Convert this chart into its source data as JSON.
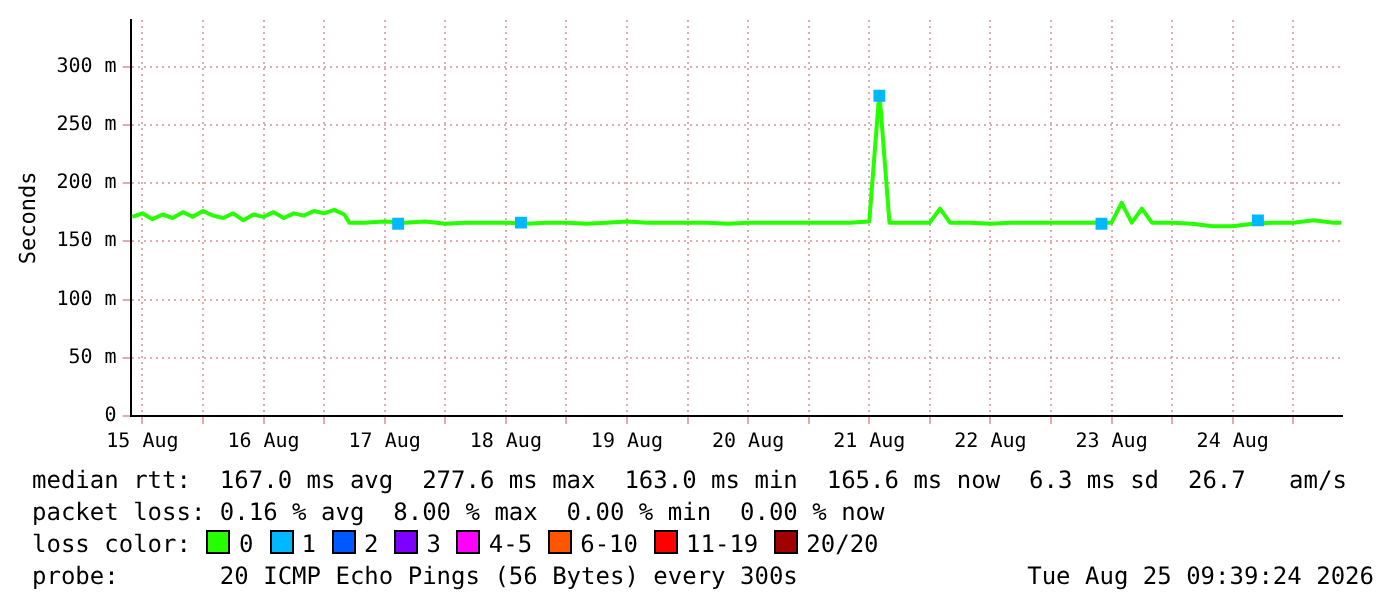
{
  "chart_data": {
    "type": "line",
    "ylabel": "Seconds",
    "legend_title": "loss color:",
    "legend": "bottom",
    "grid": true,
    "marker": "none",
    "xlim": [
      "2026-08-15T09:40",
      "2026-08-25T09:39"
    ],
    "xticks": [
      {
        "value": "2026-08-15T12:00",
        "label": "15 Aug"
      },
      {
        "value": "2026-08-16T00:00",
        "label": null
      },
      {
        "value": "2026-08-16T12:00",
        "label": "16 Aug"
      },
      {
        "value": "2026-08-17T00:00",
        "label": null
      },
      {
        "value": "2026-08-17T12:00",
        "label": "17 Aug"
      },
      {
        "value": "2026-08-18T00:00",
        "label": null
      },
      {
        "value": "2026-08-18T12:00",
        "label": "18 Aug"
      },
      {
        "value": "2026-08-19T00:00",
        "label": null
      },
      {
        "value": "2026-08-19T12:00",
        "label": "19 Aug"
      },
      {
        "value": "2026-08-20T00:00",
        "label": null
      },
      {
        "value": "2026-08-20T12:00",
        "label": "20 Aug"
      },
      {
        "value": "2026-08-21T00:00",
        "label": null
      },
      {
        "value": "2026-08-21T12:00",
        "label": "21 Aug"
      },
      {
        "value": "2026-08-22T00:00",
        "label": null
      },
      {
        "value": "2026-08-22T12:00",
        "label": "22 Aug"
      },
      {
        "value": "2026-08-23T00:00",
        "label": null
      },
      {
        "value": "2026-08-23T12:00",
        "label": "23 Aug"
      },
      {
        "value": "2026-08-24T00:00",
        "label": null
      },
      {
        "value": "2026-08-24T12:00",
        "label": "24 Aug"
      },
      {
        "value": "2026-08-25T00:00",
        "label": null
      }
    ],
    "ylim": [
      0,
      340
    ],
    "yticks": [
      0,
      {
        "value": 50,
        "label": "50 m"
      },
      {
        "value": 100,
        "label": "100 m"
      },
      {
        "value": 150,
        "label": "150 m"
      },
      {
        "value": 200,
        "label": "200 m"
      },
      {
        "value": 250,
        "label": "250 m"
      },
      {
        "value": 300,
        "label": "300 m"
      }
    ],
    "series": [
      {
        "name": "0",
        "color": "#26ff00",
        "x": [
          "2026-08-15T10:00",
          "2026-08-15T12:00",
          "2026-08-15T14:00",
          "2026-08-15T16:00",
          "2026-08-15T18:00",
          "2026-08-15T20:00",
          "2026-08-15T22:00",
          "2026-08-16T00:00",
          "2026-08-16T02:00",
          "2026-08-16T04:00",
          "2026-08-16T06:00",
          "2026-08-16T08:00",
          "2026-08-16T10:00",
          "2026-08-16T12:00",
          "2026-08-16T14:00",
          "2026-08-16T16:00",
          "2026-08-16T18:00",
          "2026-08-16T20:00",
          "2026-08-16T22:00",
          "2026-08-17T00:00",
          "2026-08-17T02:00",
          "2026-08-17T04:00",
          "2026-08-17T05:00",
          "2026-08-17T08:00",
          "2026-08-17T12:00",
          "2026-08-17T16:00",
          "2026-08-17T20:00",
          "2026-08-18T00:00",
          "2026-08-18T04:00",
          "2026-08-18T08:00",
          "2026-08-18T12:00",
          "2026-08-18T16:00",
          "2026-08-18T20:00",
          "2026-08-19T00:00",
          "2026-08-19T04:00",
          "2026-08-19T08:00",
          "2026-08-19T12:00",
          "2026-08-19T16:00",
          "2026-08-19T20:00",
          "2026-08-20T00:00",
          "2026-08-20T04:00",
          "2026-08-20T08:00",
          "2026-08-20T12:00",
          "2026-08-20T16:00",
          "2026-08-20T20:00",
          "2026-08-21T00:00",
          "2026-08-21T04:00",
          "2026-08-21T08:00",
          "2026-08-21T12:00",
          "2026-08-21T14:00",
          "2026-08-21T16:00",
          "2026-08-21T20:00",
          "2026-08-22T00:00",
          "2026-08-22T02:00",
          "2026-08-22T04:00",
          "2026-08-22T08:00",
          "2026-08-22T12:00",
          "2026-08-22T16:00",
          "2026-08-22T20:00",
          "2026-08-23T00:00",
          "2026-08-23T04:00",
          "2026-08-23T08:00",
          "2026-08-23T12:00",
          "2026-08-23T14:00",
          "2026-08-23T16:00",
          "2026-08-23T18:00",
          "2026-08-23T20:00",
          "2026-08-24T00:00",
          "2026-08-24T04:00",
          "2026-08-24T08:00",
          "2026-08-24T12:00",
          "2026-08-24T16:00",
          "2026-08-24T20:00",
          "2026-08-25T00:00",
          "2026-08-25T04:00",
          "2026-08-25T08:00",
          "2026-08-25T09:30"
        ],
        "values": [
          171,
          174,
          169,
          173,
          170,
          175,
          171,
          176,
          172,
          170,
          174,
          168,
          173,
          171,
          175,
          170,
          174,
          172,
          176,
          174,
          177,
          173,
          166,
          166,
          167,
          166,
          167,
          165,
          166,
          166,
          166,
          165,
          166,
          166,
          165,
          166,
          167,
          166,
          166,
          166,
          166,
          165,
          166,
          166,
          166,
          166,
          166,
          166,
          167,
          278,
          166,
          166,
          166,
          178,
          166,
          166,
          165,
          166,
          166,
          166,
          166,
          166,
          166,
          183,
          166,
          178,
          166,
          166,
          165,
          163,
          163,
          165,
          166,
          166,
          168,
          166,
          166
        ]
      },
      {
        "name": "1",
        "color": "#00b8ff",
        "type": "scatter",
        "marker": "square",
        "x": [
          "2026-08-17T14:40",
          "2026-08-18T15:00",
          "2026-08-21T14:00",
          "2026-08-23T10:00",
          "2026-08-24T17:00"
        ],
        "values": [
          165,
          166,
          275,
          165,
          168
        ]
      },
      {
        "name": "2",
        "color": "#0059ff",
        "type": "scatter",
        "marker": "square"
      },
      {
        "name": "3",
        "color": "#7e00ff",
        "type": "scatter",
        "marker": "square"
      },
      {
        "name": "4-5",
        "color": "#ff00ff",
        "type": "scatter",
        "marker": "square"
      },
      {
        "name": "6-10",
        "color": "#ff5500",
        "type": "scatter",
        "marker": "square"
      },
      {
        "name": "11-19",
        "color": "#ff0000",
        "type": "scatter",
        "marker": "square"
      },
      {
        "name": "20/20",
        "color": "#a10000",
        "type": "scatter",
        "marker": "square"
      }
    ],
    "annotations": [
      "median rtt:  167.0 ms avg  277.6 ms max  163.0 ms min  165.6 ms now  6.3 ms sd  26.7   am/s",
      "packet loss: 0.16 % avg  8.00 % max  0.00 % min  0.00 % now",
      "probe:       20 ICMP Echo Pings (56 Bytes) every 300s",
      "Tue Aug 25 09:39:24 2026"
    ]
  }
}
